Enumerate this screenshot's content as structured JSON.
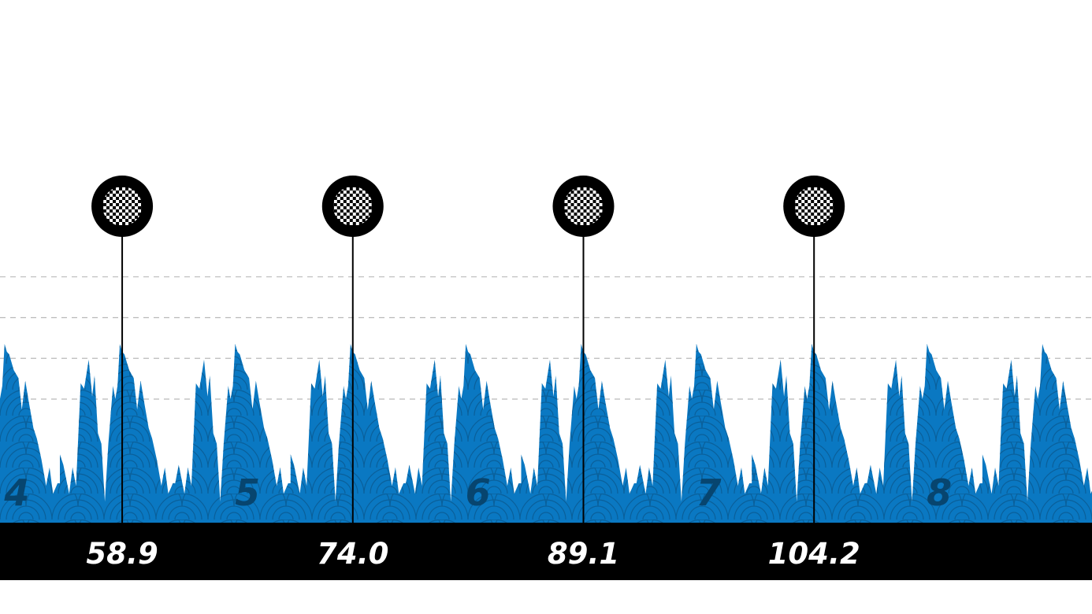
{
  "chart_data": {
    "type": "area",
    "title": "",
    "xlabel": "",
    "ylabel": "",
    "x_range_km": [
      50.9,
      122.4
    ],
    "lap_length_km": 15.1,
    "profile_rel": [
      [
        0.0,
        0.26
      ],
      [
        0.015,
        0.22
      ],
      [
        0.04,
        0.11
      ],
      [
        0.055,
        0.21
      ],
      [
        0.07,
        0.14
      ],
      [
        0.09,
        0.53
      ],
      [
        0.105,
        0.51
      ],
      [
        0.125,
        0.62
      ],
      [
        0.14,
        0.48
      ],
      [
        0.15,
        0.56
      ],
      [
        0.165,
        0.34
      ],
      [
        0.18,
        0.3
      ],
      [
        0.195,
        0.08
      ],
      [
        0.21,
        0.3
      ],
      [
        0.23,
        0.52
      ],
      [
        0.24,
        0.47
      ],
      [
        0.25,
        0.52
      ],
      [
        0.26,
        0.68
      ],
      [
        0.27,
        0.65
      ],
      [
        0.28,
        0.64
      ],
      [
        0.3,
        0.58
      ],
      [
        0.32,
        0.55
      ],
      [
        0.335,
        0.43
      ],
      [
        0.35,
        0.54
      ],
      [
        0.365,
        0.46
      ],
      [
        0.385,
        0.36
      ],
      [
        0.4,
        0.32
      ],
      [
        0.42,
        0.24
      ],
      [
        0.44,
        0.14
      ],
      [
        0.455,
        0.21
      ],
      [
        0.47,
        0.11
      ],
      [
        0.49,
        0.15
      ],
      [
        0.5,
        0.15
      ]
    ],
    "elevation_gridlines": 4,
    "climb_markers": [
      {
        "km": 58.9,
        "label": "58.9"
      },
      {
        "km": 74.0,
        "label": "74.0"
      },
      {
        "km": 89.1,
        "label": "89.1"
      },
      {
        "km": 104.2,
        "label": "104.2"
      }
    ],
    "lap_labels": [
      {
        "km": 52.0,
        "label": "4"
      },
      {
        "km": 67.1,
        "label": "5"
      },
      {
        "km": 82.2,
        "label": "6"
      },
      {
        "km": 97.3,
        "label": "7"
      },
      {
        "km": 112.4,
        "label": "8"
      }
    ],
    "colors": {
      "area": "#0a78c2",
      "area_pattern": "#0a5f9a",
      "lap_number": "#07456f",
      "bar": "#000000",
      "bar_text": "#ffffff",
      "grid": "#b9b9b9",
      "marker_line": "#000000"
    },
    "marker_icon": "checkered-flag-icon"
  }
}
